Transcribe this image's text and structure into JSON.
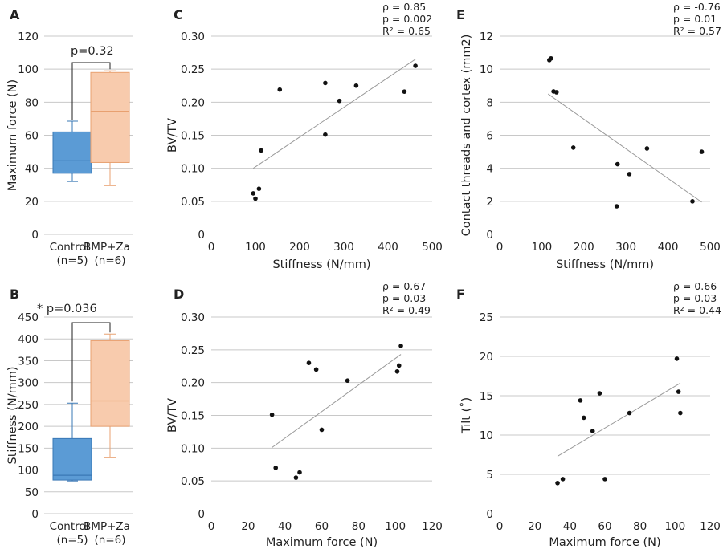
{
  "chart_data": [
    {
      "panel": "A",
      "type": "box",
      "ylabel": "Maximum force (N)",
      "ylim": [
        0,
        120
      ],
      "yticks": [
        0,
        20,
        40,
        60,
        80,
        100,
        120
      ],
      "groups": [
        {
          "name": "Control",
          "n": "(n=5)",
          "color": "#5b9bd5",
          "edge": "#3a78b5",
          "whisker_low": 32,
          "q1": 37,
          "median": 44.5,
          "q3": 62,
          "whisker_high": 68.5
        },
        {
          "name": "BMP+Za",
          "n": "(n=6)",
          "color": "#f8cbad",
          "edge": "#e8a070",
          "whisker_low": 29.5,
          "q1": 43.5,
          "median": 74.5,
          "q3": 98,
          "whisker_high": 99
        }
      ],
      "annotation": "p=0.32"
    },
    {
      "panel": "B",
      "type": "box",
      "ylabel": "Stiffness (N/mm)",
      "ylim": [
        0,
        450
      ],
      "yticks": [
        0,
        50,
        100,
        150,
        200,
        250,
        300,
        350,
        400,
        450
      ],
      "groups": [
        {
          "name": "Control",
          "n": "(n=5)",
          "color": "#5b9bd5",
          "edge": "#3a78b5",
          "whisker_low": 75,
          "q1": 77,
          "median": 88,
          "q3": 172,
          "whisker_high": 253
        },
        {
          "name": "BMP+Za",
          "n": "(n=6)",
          "color": "#f8cbad",
          "edge": "#e8a070",
          "whisker_low": 128,
          "q1": 200,
          "median": 258,
          "q3": 396,
          "whisker_high": 411
        }
      ],
      "annotation": "* p=0.036"
    },
    {
      "panel": "C",
      "type": "scatter",
      "xlabel": "Stiffness (N/mm)",
      "ylabel": "BV/TV",
      "xlim": [
        0,
        500
      ],
      "ylim": [
        0,
        0.3
      ],
      "xticks": [
        0,
        100,
        200,
        300,
        400,
        500
      ],
      "yticks": [
        "0",
        "0.05",
        "0.10",
        "0.15",
        "0.20",
        "0.25",
        "0.30"
      ],
      "points": [
        [
          95,
          0.062
        ],
        [
          100,
          0.054
        ],
        [
          108,
          0.069
        ],
        [
          113,
          0.127
        ],
        [
          155,
          0.219
        ],
        [
          258,
          0.229
        ],
        [
          258,
          0.151
        ],
        [
          290,
          0.202
        ],
        [
          328,
          0.225
        ],
        [
          437,
          0.216
        ],
        [
          462,
          0.255
        ]
      ],
      "trendline": [
        [
          95,
          0.1
        ],
        [
          462,
          0.265
        ]
      ],
      "stats": {
        "rho": "ρ = 0.85",
        "p": "p = 0.002",
        "r2": "R² = 0.65"
      }
    },
    {
      "panel": "D",
      "type": "scatter",
      "xlabel": "Maximum force (N)",
      "ylabel": "BV/TV",
      "xlim": [
        0,
        120
      ],
      "ylim": [
        0,
        0.3
      ],
      "xticks": [
        0,
        20,
        40,
        60,
        80,
        100,
        120
      ],
      "yticks": [
        "0",
        "0.05",
        "0.10",
        "0.15",
        "0.20",
        "0.25",
        "0.30"
      ],
      "points": [
        [
          33,
          0.151
        ],
        [
          35,
          0.07
        ],
        [
          46,
          0.055
        ],
        [
          48,
          0.063
        ],
        [
          53,
          0.23
        ],
        [
          57,
          0.22
        ],
        [
          60,
          0.128
        ],
        [
          74,
          0.203
        ],
        [
          101,
          0.217
        ],
        [
          102,
          0.226
        ],
        [
          103,
          0.256
        ]
      ],
      "trendline": [
        [
          33,
          0.101
        ],
        [
          103,
          0.243
        ]
      ],
      "stats": {
        "rho": "ρ = 0.67",
        "p": "p = 0.03",
        "r2": "R² = 0.49"
      }
    },
    {
      "panel": "E",
      "type": "scatter",
      "xlabel": "Stiffness (N/mm)",
      "ylabel": "Contact threads and cortex (mm2)",
      "xlim": [
        0,
        500
      ],
      "ylim": [
        0,
        12
      ],
      "xticks": [
        0,
        100,
        200,
        300,
        400,
        500
      ],
      "yticks": [
        "0",
        "2",
        "4",
        "6",
        "8",
        "10",
        "12"
      ],
      "points": [
        [
          118,
          10.55
        ],
        [
          122,
          10.65
        ],
        [
          128,
          8.65
        ],
        [
          135,
          8.6
        ],
        [
          175,
          5.25
        ],
        [
          278,
          1.7
        ],
        [
          280,
          4.25
        ],
        [
          308,
          3.65
        ],
        [
          350,
          5.2
        ],
        [
          458,
          2.0
        ],
        [
          480,
          5.0
        ]
      ],
      "trendline": [
        [
          115,
          8.5
        ],
        [
          480,
          1.95
        ]
      ],
      "stats": {
        "rho": "ρ = -0.76",
        "p": "p = 0.01",
        "r2": "R² = 0.57"
      }
    },
    {
      "panel": "F",
      "type": "scatter",
      "xlabel": "Maximum force (N)",
      "ylabel": "Tilt (˚)",
      "xlim": [
        0,
        120
      ],
      "ylim": [
        0,
        25
      ],
      "xticks": [
        0,
        20,
        40,
        60,
        80,
        100,
        120
      ],
      "yticks": [
        "0",
        "5",
        "10",
        "15",
        "20",
        "25"
      ],
      "points": [
        [
          33,
          3.9
        ],
        [
          36,
          4.4
        ],
        [
          46,
          14.4
        ],
        [
          48,
          12.2
        ],
        [
          53,
          10.5
        ],
        [
          57,
          15.3
        ],
        [
          60,
          4.4
        ],
        [
          74,
          12.8
        ],
        [
          101,
          19.7
        ],
        [
          102,
          15.5
        ],
        [
          103,
          12.8
        ]
      ],
      "trendline": [
        [
          33,
          7.3
        ],
        [
          103,
          16.6
        ]
      ],
      "stats": {
        "rho": "ρ = 0.66",
        "p": "p = 0.03",
        "r2": "R² = 0.44"
      }
    }
  ]
}
